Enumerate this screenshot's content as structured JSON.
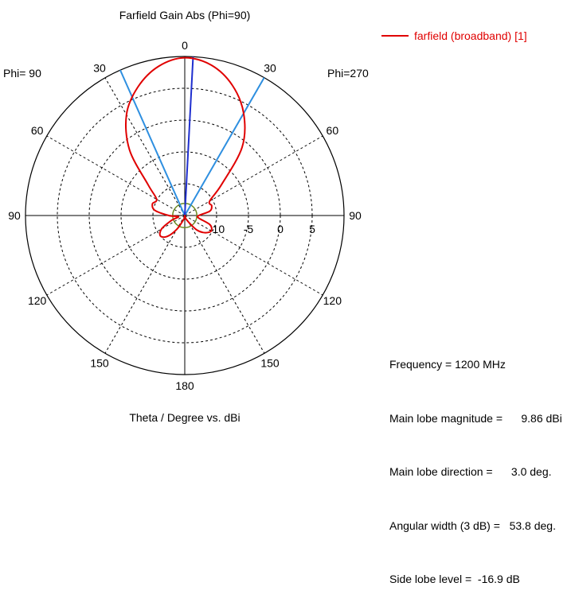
{
  "chart_data": {
    "type": "polar-line",
    "title": "Farfield Gain Abs (Phi=90)",
    "xlabel": "Theta / Degree vs. dBi",
    "left_label": "Phi= 90",
    "right_label": "Phi=270",
    "angle_ticks": [
      {
        "angle": 0,
        "label": "0"
      },
      {
        "angle": 30,
        "label": "30"
      },
      {
        "angle": -30,
        "label": "30"
      },
      {
        "angle": 60,
        "label": "60"
      },
      {
        "angle": -60,
        "label": "60"
      },
      {
        "angle": 90,
        "label": "90"
      },
      {
        "angle": -90,
        "label": "90"
      },
      {
        "angle": 120,
        "label": "120"
      },
      {
        "angle": -120,
        "label": "120"
      },
      {
        "angle": 150,
        "label": "150"
      },
      {
        "angle": -150,
        "label": "150"
      },
      {
        "angle": 180,
        "label": "180"
      }
    ],
    "radial_ticks": [
      {
        "value": -10,
        "label": "-10"
      },
      {
        "value": -5,
        "label": "-5"
      },
      {
        "value": 0,
        "label": "0"
      },
      {
        "value": 5,
        "label": "5"
      }
    ],
    "r_range": [
      -15,
      10
    ],
    "ref_circle_level": -13.1,
    "main_lobe_direction": 3.0,
    "beam_edges": [
      -23.9,
      29.9
    ],
    "series": [
      {
        "name": "farfield (broadband) [1]",
        "color": "#e00000",
        "theta": [
          -180,
          -165,
          -150,
          -140,
          -130,
          -120,
          -110,
          -100,
          -90,
          -80,
          -70,
          -60,
          -50,
          -40,
          -30,
          -20,
          -10,
          0,
          10,
          20,
          30,
          40,
          50,
          60,
          70,
          80,
          90,
          100,
          110,
          120,
          130,
          140,
          150,
          165,
          180
        ],
        "gain": [
          -15,
          -14.4,
          -12.5,
          -10.7,
          -10.0,
          -10.8,
          -12.8,
          -14.0,
          -12.5,
          -10.2,
          -9.6,
          -9.9,
          -7.5,
          -1.5,
          3.3,
          6.5,
          8.8,
          9.8,
          9.0,
          6.8,
          3.5,
          -1.0,
          -7.5,
          -10.5,
          -10.5,
          -11.0,
          -12.8,
          -12.8,
          -10.8,
          -10.2,
          -10.8,
          -12.0,
          -13.8,
          -14.6,
          -15
        ]
      }
    ],
    "legend_placement": "top-right",
    "grid": true
  },
  "info_lines": [
    "Frequency = 1200 MHz",
    "Main lobe magnitude =      9.86 dBi",
    "Main lobe direction =      3.0 deg.",
    "Angular width (3 dB) =   53.8 deg.",
    "Side lobe level =  -16.9 dB"
  ],
  "colors": {
    "trace": "#e00000",
    "main_lobe": "#1f2fcf",
    "beam_width": "#2e8fe0",
    "ref_circle": "#6b8a22",
    "grid": "#000000"
  }
}
